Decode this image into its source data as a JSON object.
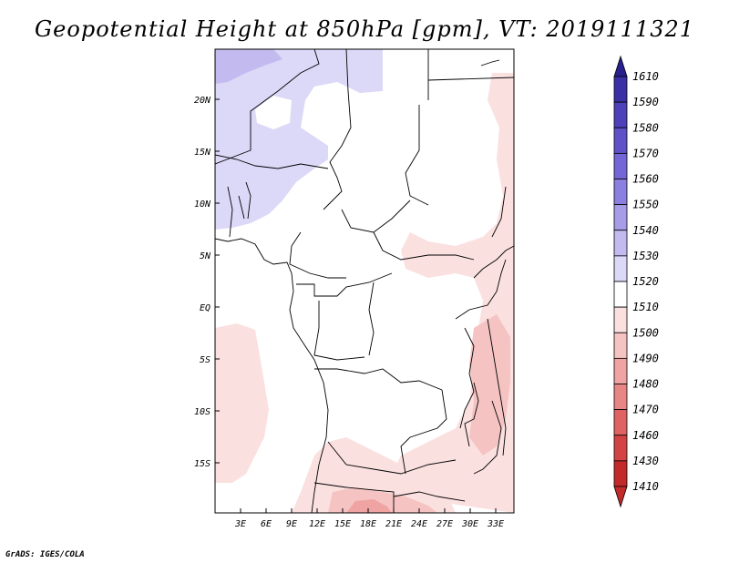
{
  "title": "Geopotential Height at 850hPa [gpm], VT: 2019111321",
  "credit": "GrADS: IGES/COLA",
  "map": {
    "lat_ticks": [
      "20N",
      "15N",
      "10N",
      "5N",
      "EQ",
      "5S",
      "10S",
      "15S"
    ],
    "lon_ticks": [
      "3E",
      "6E",
      "9E",
      "12E",
      "15E",
      "18E",
      "21E",
      "24E",
      "27E",
      "30E",
      "33E"
    ]
  },
  "colorbar": {
    "levels": [
      "1610",
      "1590",
      "1580",
      "1570",
      "1560",
      "1550",
      "1540",
      "1530",
      "1520",
      "1510",
      "1500",
      "1490",
      "1480",
      "1470",
      "1460",
      "1430",
      "1410"
    ],
    "colors": [
      "#2a1f8f",
      "#3b2fa6",
      "#4d40b8",
      "#5f52c8",
      "#7466d6",
      "#8b7fe0",
      "#a79ce8",
      "#c3bbf0",
      "#dcd8f7",
      "#ffffff",
      "#fbe0e0",
      "#f6c3c3",
      "#efa3a3",
      "#e88585",
      "#df6363",
      "#d44343",
      "#c32a2a"
    ]
  }
}
